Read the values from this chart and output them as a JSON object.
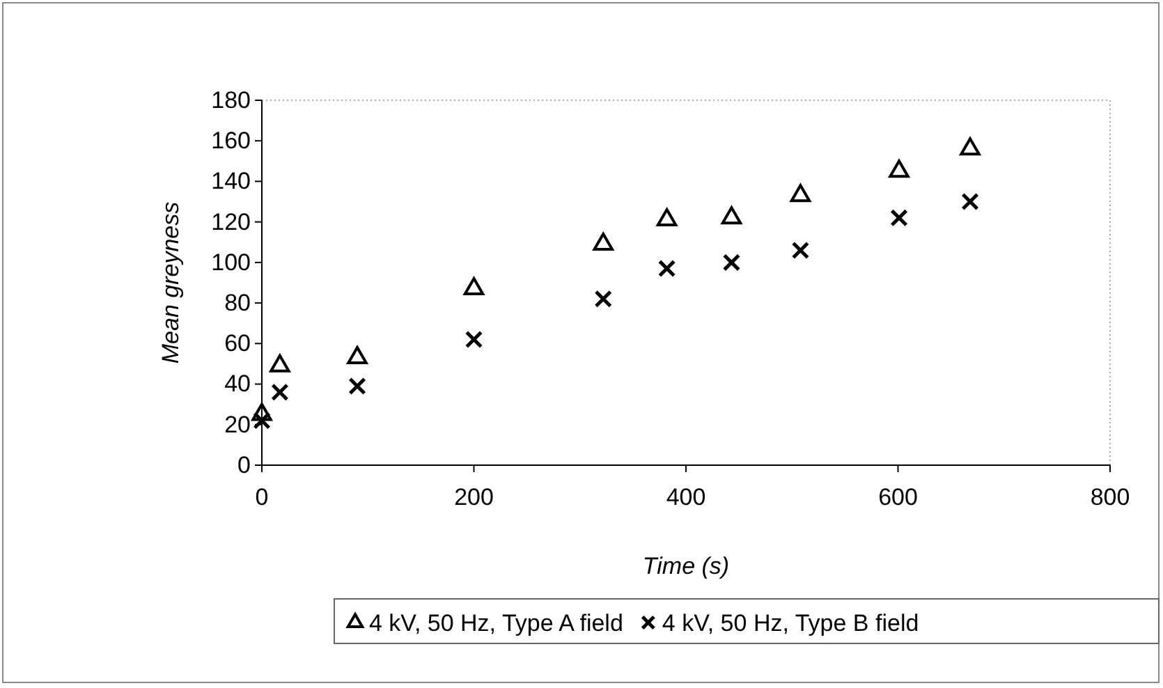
{
  "chart_data": {
    "type": "scatter",
    "xlabel": "Time (s)",
    "ylabel": "Mean greyness",
    "x": [
      0,
      17,
      90,
      200,
      322,
      382,
      443,
      508,
      601,
      668
    ],
    "series": [
      {
        "name": "4 kV, 50 Hz, Type A field",
        "color": "#000000",
        "marker": "triangle",
        "values": [
          25,
          49,
          53,
          87,
          109,
          121,
          122,
          133,
          145,
          156
        ]
      },
      {
        "name": "4 kV, 50 Hz, Type B field",
        "color": "#000000",
        "marker": "cross",
        "values": [
          22,
          36,
          39,
          62,
          82,
          97,
          100,
          106,
          122,
          130
        ]
      }
    ],
    "xlim": [
      0,
      800
    ],
    "xticks": [
      0,
      200,
      400,
      600,
      800
    ],
    "ylim": [
      0,
      180
    ],
    "yticks": [
      0,
      20,
      40,
      60,
      80,
      100,
      120,
      140,
      160,
      180
    ],
    "grid": false,
    "legend": "bottom"
  }
}
